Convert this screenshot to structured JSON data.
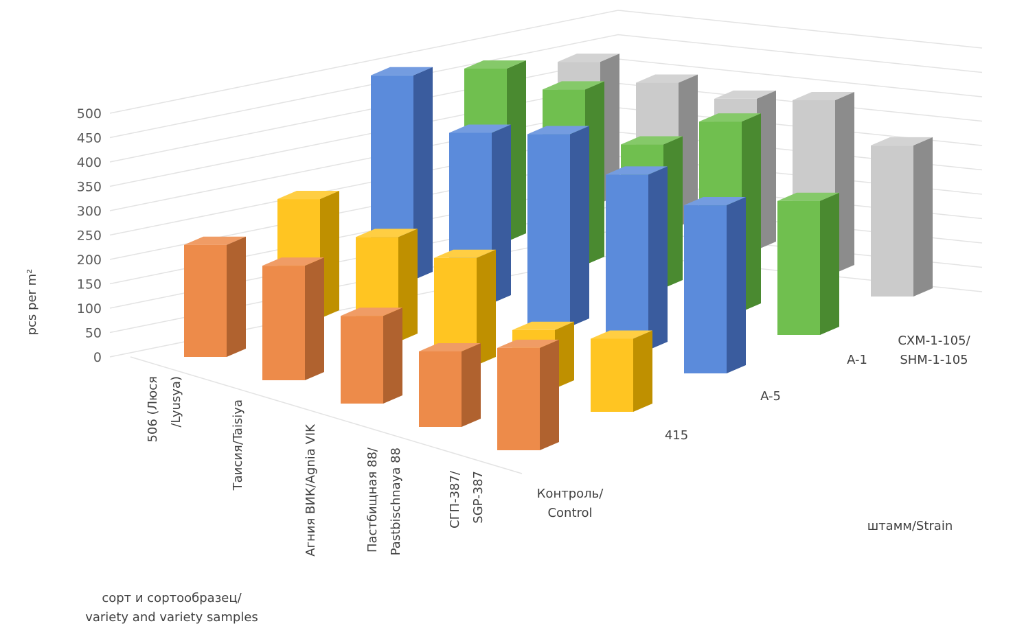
{
  "chart_data": {
    "type": "bar",
    "subtype": "3d-column",
    "title": "",
    "ylabel": "pcs per m²",
    "xlabel": "сорт и сортообразец/ variety and variety samples",
    "zlabel": "штамм/Strain",
    "ylim": [
      0,
      500
    ],
    "yticks": [
      0,
      50,
      100,
      150,
      200,
      250,
      300,
      350,
      400,
      450,
      500
    ],
    "grid": true,
    "categories": [
      [
        "506 (Люся",
        "/Lyusya)"
      ],
      [
        "Таисия/Taisiya"
      ],
      [
        "Агния ВИК/Agnia VIK"
      ],
      [
        "Пастбищная 88/",
        "Pastbischnaya 88"
      ],
      [
        "СГП-387/",
        "SGP-387"
      ]
    ],
    "series": [
      {
        "name": [
          "Контроль/",
          "Control"
        ],
        "color": "#ED8B4A",
        "side": "#B0622F",
        "values": [
          230,
          235,
          180,
          155,
          210
        ]
      },
      {
        "name": [
          "415"
        ],
        "color": "#FFC522",
        "side": "#BF9000",
        "values": [
          245,
          215,
          220,
          120,
          150
        ]
      },
      {
        "name": [
          "A-5"
        ],
        "color": "#5B8BDB",
        "side": "#3A5C9E",
        "values": [
          420,
          350,
          395,
          360,
          345
        ]
      },
      {
        "name": [
          "A-1"
        ],
        "color": "#70BF4F",
        "side": "#4A8A30",
        "values": [
          355,
          360,
          295,
          390,
          275
        ]
      },
      {
        "name": [
          "CXM-1-105/",
          "SHM-1-105"
        ],
        "color": "#CBCBCB",
        "side": "#8C8C8C",
        "values": [
          290,
          295,
          310,
          355,
          310
        ]
      }
    ]
  }
}
